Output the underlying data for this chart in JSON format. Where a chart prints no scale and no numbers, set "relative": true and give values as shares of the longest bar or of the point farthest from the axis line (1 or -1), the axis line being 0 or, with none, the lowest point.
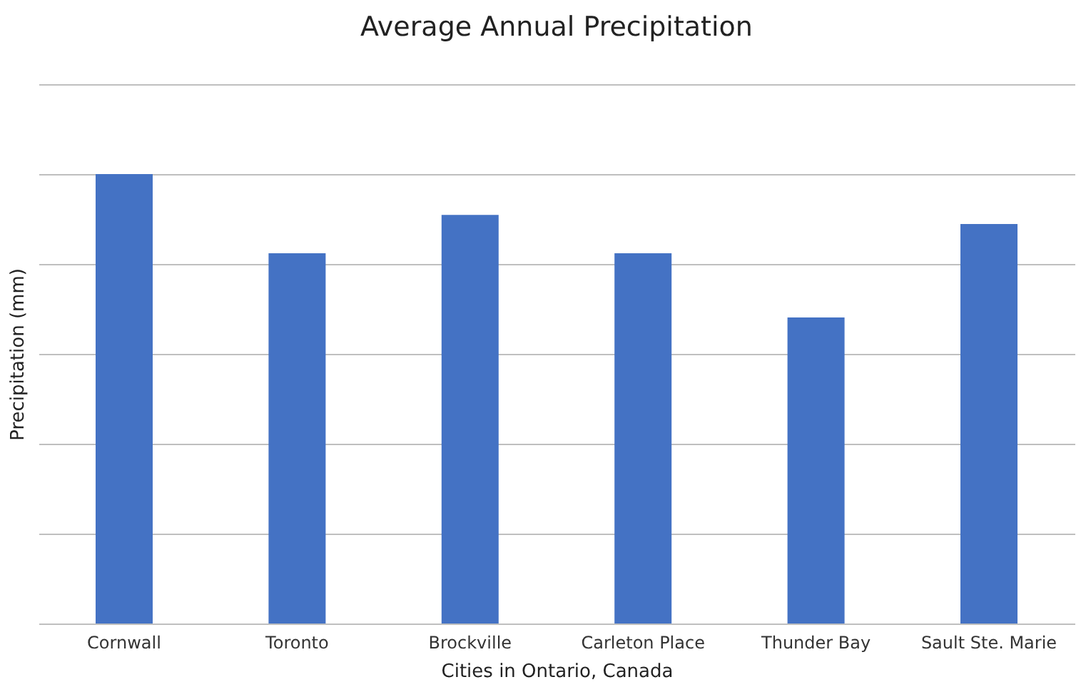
{
  "chart_data": {
    "type": "bar",
    "title": "Average Annual Precipitation",
    "xlabel": "Cities in Ontario, Canada",
    "ylabel": "Precipitation (mm)",
    "categories": [
      "Cornwall",
      "Toronto",
      "Brockville",
      "Carleton Place",
      "Thunder Bay",
      "Sault Ste. Marie"
    ],
    "values": [
      1,
      0.824,
      0.909,
      0.824,
      0.681,
      0.889
    ],
    "color": "#4472c4",
    "relative": true,
    "grid": "y"
  }
}
